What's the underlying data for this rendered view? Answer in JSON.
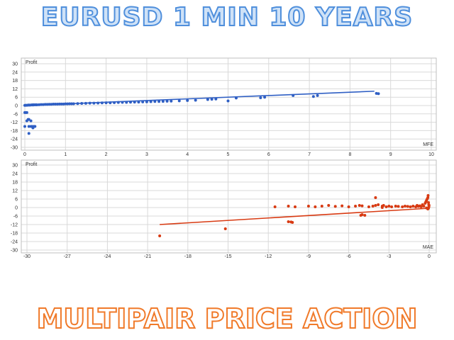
{
  "title": "EURUSD 1 MIN 10 YEARS",
  "subtitle": "MULTIPAIR PRICE ACTION",
  "colors": {
    "title_fill": "#cfe2f7",
    "title_stroke": "#4f8fdc",
    "subtitle_stroke": "#f07a2a",
    "mfe": "#2f5fc4",
    "mae": "#d83a12",
    "grid": "#d9d9d9"
  },
  "chart_data": [
    {
      "type": "scatter",
      "title": "",
      "ylabel": "Profit",
      "xlabel": "MFE",
      "xlim": [
        0,
        10
      ],
      "ylim": [
        -30,
        30
      ],
      "xticks": [
        "0",
        "1",
        "2",
        "3",
        "4",
        "5",
        "6",
        "7",
        "8",
        "9",
        "10"
      ],
      "yticks": [
        "30",
        "24",
        "18",
        "12",
        "6",
        "0",
        "-6",
        "-12",
        "-18",
        "-24",
        "-30"
      ],
      "grid": true,
      "color": "#2f5fc4",
      "trendline": {
        "x": [
          0,
          8.6
        ],
        "y": [
          0,
          10.3
        ]
      },
      "series": [
        {
          "x": [
            0.0,
            0.02,
            0.05,
            0.08,
            0.1,
            0.12,
            0.15,
            0.18,
            0.2,
            0.22,
            0.25,
            0.28,
            0.3,
            0.35,
            0.4,
            0.45,
            0.5,
            0.55,
            0.6,
            0.65,
            0.7,
            0.75,
            0.8,
            0.85,
            0.9,
            0.95,
            1.0,
            1.05,
            1.1,
            1.15,
            1.2,
            1.3,
            1.4,
            1.5,
            1.6,
            1.7,
            1.8,
            1.9,
            2.0,
            2.1,
            2.2,
            2.3,
            2.4,
            2.5,
            2.6,
            2.7,
            2.8,
            2.9,
            3.0,
            3.1,
            3.2,
            3.3,
            3.4,
            3.5,
            3.6,
            3.8,
            4.0,
            4.2,
            4.5,
            4.6,
            4.7,
            5.0,
            5.2,
            5.8,
            5.9,
            6.6,
            7.1,
            7.2,
            8.65,
            8.7,
            0.0,
            0.02,
            0.05,
            0.08,
            0.1,
            0.1,
            0.15,
            0.18,
            0.2,
            0.22,
            0.25,
            0.0,
            0.05,
            0.1,
            0.15
          ],
          "y": [
            0.1,
            0.2,
            0.2,
            0.3,
            0.4,
            0.3,
            0.4,
            0.5,
            0.4,
            0.6,
            0.5,
            0.6,
            0.5,
            0.6,
            0.7,
            0.7,
            0.8,
            0.8,
            0.9,
            0.9,
            1.0,
            1.0,
            1.0,
            1.1,
            1.1,
            1.1,
            1.2,
            1.2,
            1.3,
            1.3,
            1.3,
            1.4,
            1.5,
            1.6,
            1.7,
            1.7,
            1.8,
            1.9,
            2.0,
            2.0,
            2.1,
            2.2,
            2.3,
            2.3,
            2.4,
            2.5,
            2.5,
            2.6,
            2.7,
            2.8,
            2.9,
            2.9,
            3.0,
            3.1,
            3.2,
            3.4,
            3.6,
            3.8,
            4.3,
            4.5,
            4.7,
            3.3,
            5.4,
            5.6,
            6.0,
            7.2,
            6.5,
            7.2,
            8.7,
            8.5,
            -5.0,
            -5.0,
            -5.0,
            -10.0,
            -10.0,
            -15.0,
            -15.0,
            -15.0,
            -16.0,
            -15.0,
            -15.0,
            -15.0,
            -11.0,
            -20.0,
            -11.0
          ]
        }
      ]
    },
    {
      "type": "scatter",
      "title": "",
      "ylabel": "Profit",
      "xlabel": "MAE",
      "xlim": [
        -30,
        0
      ],
      "ylim": [
        -30,
        30
      ],
      "xticks": [
        "-30",
        "-27",
        "-24",
        "-21",
        "-18",
        "-15",
        "-12",
        "-9",
        "-6",
        "-3",
        "0"
      ],
      "yticks": [
        "30",
        "24",
        "18",
        "12",
        "6",
        "0",
        "-6",
        "-12",
        "-18",
        "-24",
        "-30"
      ],
      "grid": true,
      "color": "#d83a12",
      "trendline": {
        "x": [
          -20.1,
          0
        ],
        "y": [
          -12.0,
          -0.5
        ]
      },
      "series": [
        {
          "x": [
            -20.1,
            -15.2,
            -10.5,
            -10.3,
            -10.2,
            -11.5,
            -10.5,
            -10.0,
            -9.0,
            -8.5,
            -8.0,
            -7.5,
            -7.0,
            -6.5,
            -6.0,
            -5.5,
            -5.2,
            -5.0,
            -4.8,
            -4.5,
            -4.0,
            -3.8,
            -3.5,
            -3.2,
            -3.0,
            -2.8,
            -2.5,
            -2.3,
            -2.0,
            -1.8,
            -1.6,
            -1.4,
            -1.2,
            -1.0,
            -0.9,
            -0.8,
            -0.7,
            -0.6,
            -0.5,
            -0.4,
            -0.3,
            -0.25,
            -0.2,
            -0.15,
            -0.1,
            -0.08,
            -0.05,
            -0.03,
            -0.02,
            -0.01,
            -0.05,
            -0.1,
            -0.2,
            -3.5,
            -3.4,
            -4.0,
            -4.2,
            -5.0,
            -5.1
          ],
          "y": [
            -20.0,
            -15.0,
            -10.0,
            -10.2,
            -10.5,
            0.5,
            1.0,
            0.5,
            1.0,
            0.5,
            1.0,
            1.5,
            0.8,
            1.2,
            0.5,
            1.0,
            1.5,
            -5.0,
            -5.5,
            0.5,
            1.5,
            2.0,
            1.0,
            0.5,
            1.0,
            0.5,
            1.0,
            0.8,
            0.5,
            1.0,
            0.8,
            0.5,
            1.0,
            0.5,
            1.5,
            0.8,
            1.2,
            0.5,
            2.0,
            1.0,
            3.0,
            4.0,
            5.0,
            6.0,
            7.0,
            8.5,
            3.5,
            2.0,
            0.5,
            1.5,
            -0.5,
            -1.0,
            -0.3,
            0.0,
            1.5,
            7.0,
            1.0,
            1.2,
            -5.5
          ]
        }
      ]
    }
  ]
}
